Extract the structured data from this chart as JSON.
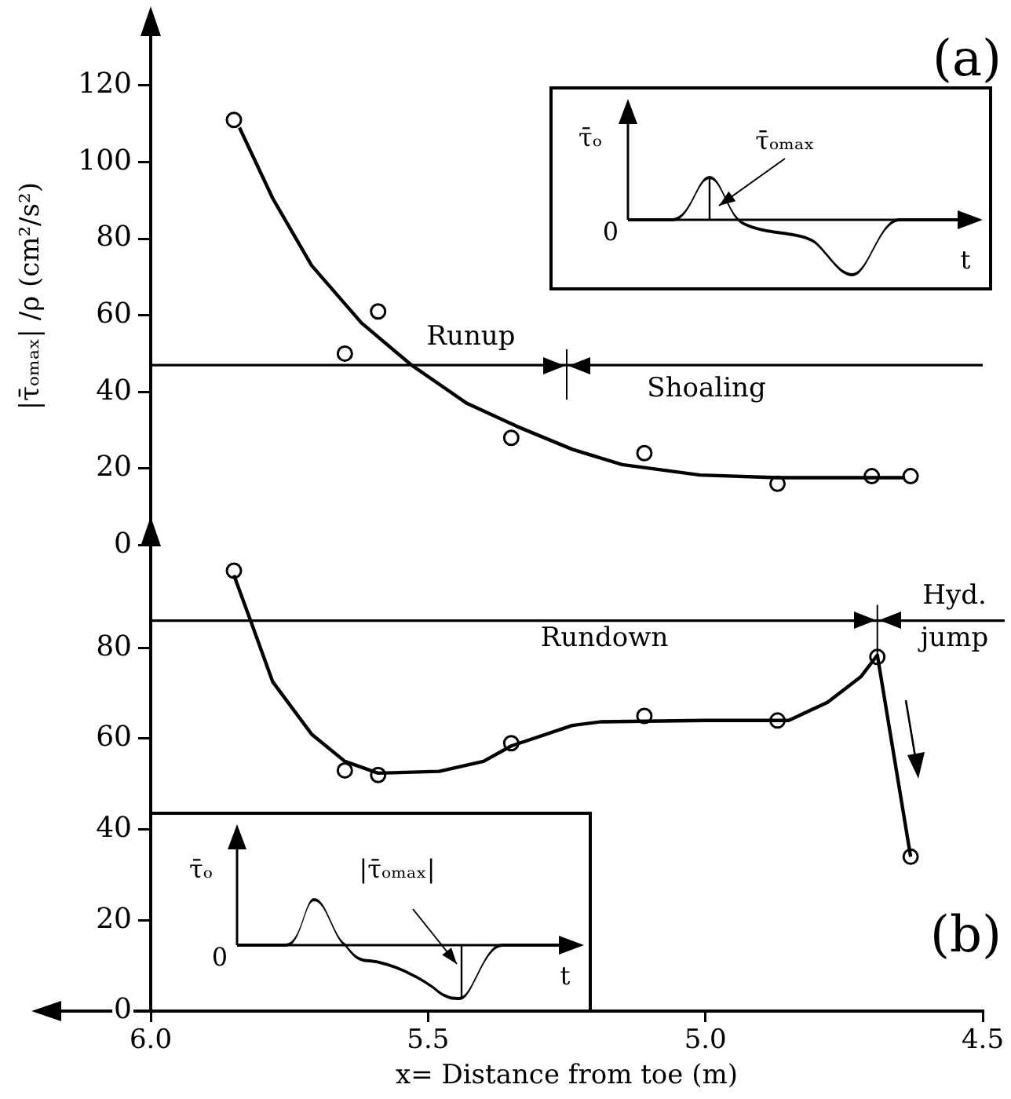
{
  "chart_data": [
    {
      "type": "scatter",
      "title": "(a)",
      "ylabel": "|τ̄ₒₘₐₓ| /ρ (cm²/s²)",
      "xlim": [
        6.0,
        4.5
      ],
      "ylim": [
        0,
        130
      ],
      "yticks": [
        0,
        20,
        40,
        60,
        80,
        100,
        120
      ],
      "tick_labels": "y",
      "grid": false,
      "legend": false,
      "series": [
        {
          "type": "scatter",
          "color": "#000000",
          "marker": "circle",
          "x": [
            5.85,
            5.65,
            5.59,
            5.35,
            5.11,
            4.87,
            4.7,
            4.63
          ],
          "values": [
            111,
            50,
            61,
            28,
            24,
            16,
            18,
            18
          ]
        },
        {
          "type": "line",
          "color": "#000000",
          "marker": "none",
          "x": [
            5.84,
            5.78,
            5.71,
            5.62,
            5.53,
            5.43,
            5.34,
            5.24,
            5.15,
            5.01,
            4.87,
            4.64
          ],
          "values": [
            109,
            90.5,
            73,
            58,
            47,
            37,
            31,
            25,
            21,
            18.3,
            17.6,
            17.6
          ]
        }
      ],
      "ref_lines": [
        {
          "axis": "y",
          "value": 47
        },
        {
          "axis": "x",
          "value": 5.25
        }
      ],
      "annotations": [
        "Runup",
        "Shoaling",
        "τ̄ₒ",
        "τ̄ₒₘₐₓ",
        "0",
        "t"
      ]
    },
    {
      "type": "scatter",
      "title": "(b)",
      "xlabel": "x= Distance from toe (m)",
      "xlim": [
        6.0,
        4.5
      ],
      "xticks": [
        {
          "value": 6,
          "label": "6.0"
        },
        5.5,
        {
          "value": 5,
          "label": "5.0"
        },
        4.5
      ],
      "ylim": [
        0,
        100
      ],
      "yticks": [
        0,
        20,
        40,
        60,
        80
      ],
      "grid": false,
      "legend": false,
      "series": [
        {
          "type": "scatter",
          "color": "#000000",
          "marker": "circle",
          "x": [
            5.85,
            5.65,
            5.59,
            5.35,
            5.11,
            4.87,
            4.69,
            4.63
          ],
          "values": [
            97,
            53,
            52,
            59,
            65,
            64,
            78,
            34
          ]
        },
        {
          "type": "line",
          "color": "#000000",
          "marker": "none",
          "x": [
            5.85,
            5.82,
            5.78,
            5.71,
            5.65,
            5.59,
            5.48,
            5.4,
            5.35,
            5.24,
            5.19,
            5.0,
            4.85,
            4.78,
            4.72,
            4.69,
            4.63
          ],
          "values": [
            96,
            86,
            72.5,
            61,
            55,
            52.4,
            52.8,
            55,
            58.4,
            62.9,
            63.7,
            64,
            64,
            68,
            73.6,
            78.4,
            34
          ]
        }
      ],
      "ref_lines": [
        {
          "axis": "y",
          "value": 86
        },
        {
          "axis": "x",
          "value": 4.69
        }
      ],
      "annotations": [
        "Rundown",
        "Hyd.",
        "jump",
        "τ̄ₒ",
        "|τ̄ₒₘₐₓ|",
        "0",
        "t"
      ]
    }
  ]
}
